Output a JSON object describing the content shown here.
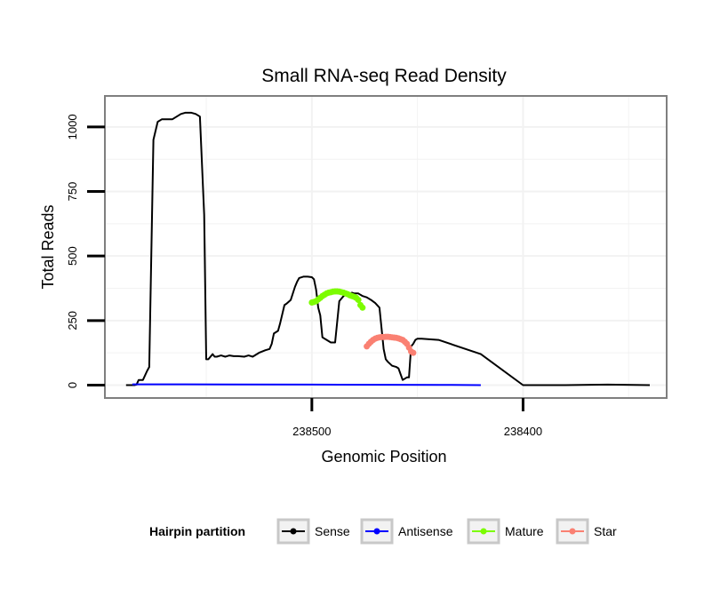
{
  "chart_data": {
    "type": "line",
    "title": "Small RNA-seq Read Density",
    "xlabel": "Genomic Position",
    "ylabel": "Total Reads",
    "x_reversed": true,
    "xlim": [
      238598,
      238332
    ],
    "ylim": [
      -50,
      1120
    ],
    "x_ticks": [
      238500,
      238400
    ],
    "x_tick_labels": [
      "238500",
      "238400"
    ],
    "y_ticks": [
      0,
      250,
      500,
      750,
      1000
    ],
    "y_tick_labels": [
      "0",
      "250",
      "500",
      "750",
      "1000"
    ],
    "grid": true,
    "legend": {
      "title": "Hairpin partition",
      "position": "bottom",
      "entries": [
        {
          "name": "Sense",
          "color": "#000000"
        },
        {
          "name": "Antisense",
          "color": "#0000ff"
        },
        {
          "name": "Mature",
          "color": "#7cfc00"
        },
        {
          "name": "Star",
          "color": "#fa8072"
        }
      ]
    },
    "series": [
      {
        "name": "Sense",
        "color": "#000000",
        "x": [
          238588,
          238584,
          238583,
          238582,
          238580,
          238578,
          238577,
          238575,
          238573,
          238571,
          238566,
          238562,
          238560,
          238557,
          238555,
          238553,
          238551,
          238550,
          238549,
          238548,
          238547,
          238546,
          238545,
          238543,
          238541,
          238539,
          238537,
          238535,
          238532,
          238530,
          238528,
          238525,
          238522,
          238520,
          238519,
          238518,
          238516,
          238515,
          238513,
          238512,
          238510,
          238508,
          238507,
          238506,
          238504,
          238502,
          238500,
          238499,
          238498,
          238497,
          238496,
          238495,
          238493,
          238491,
          238489,
          238487,
          238486,
          238485,
          238483,
          238481,
          238480,
          238478,
          238477,
          238476,
          238474,
          238472,
          238470,
          238468,
          238466,
          238465,
          238464,
          238462,
          238460,
          238459,
          238457,
          238455,
          238454,
          238453,
          238452,
          238451,
          238450,
          238448,
          238440,
          238420,
          238400,
          238380,
          238360,
          238340
        ],
        "y": [
          0,
          0,
          2,
          20,
          20,
          55,
          70,
          950,
          1020,
          1030,
          1030,
          1050,
          1055,
          1055,
          1050,
          1040,
          660,
          100,
          100,
          110,
          120,
          110,
          110,
          115,
          110,
          115,
          112,
          112,
          110,
          115,
          110,
          125,
          135,
          140,
          160,
          200,
          210,
          240,
          310,
          315,
          330,
          380,
          400,
          415,
          420,
          420,
          418,
          410,
          370,
          300,
          270,
          185,
          175,
          165,
          165,
          325,
          335,
          345,
          352,
          358,
          355,
          355,
          350,
          345,
          340,
          330,
          318,
          300,
          140,
          100,
          90,
          75,
          70,
          65,
          20,
          30,
          30,
          150,
          160,
          175,
          180,
          180,
          175,
          120,
          0,
          0,
          2,
          0
        ]
      },
      {
        "name": "Antisense",
        "color": "#0000ff",
        "x": [
          238585,
          238560,
          238500,
          238440,
          238420
        ],
        "y": [
          3,
          3,
          2,
          1,
          0
        ]
      },
      {
        "name": "Mature",
        "color": "#7cfc00",
        "x": [
          238500,
          238499,
          238498,
          238497,
          238496,
          238495,
          238494,
          238493,
          238492,
          238491,
          238490,
          238489,
          238488,
          238487,
          238486,
          238485,
          238484,
          238483,
          238482,
          238481,
          238480,
          238479,
          238478,
          238477,
          238476
        ],
        "y": [
          320,
          322,
          325,
          332,
          338,
          345,
          350,
          355,
          358,
          360,
          362,
          363,
          363,
          362,
          360,
          358,
          355,
          352,
          348,
          345,
          342,
          338,
          330,
          310,
          300
        ]
      },
      {
        "name": "Star",
        "color": "#fa8072",
        "x": [
          238474,
          238473,
          238472,
          238471,
          238470,
          238469,
          238468,
          238467,
          238466,
          238465,
          238464,
          238463,
          238462,
          238461,
          238460,
          238459,
          238458,
          238457,
          238456,
          238455,
          238454,
          238453,
          238452
        ],
        "y": [
          150,
          160,
          168,
          175,
          180,
          183,
          185,
          186,
          186,
          187,
          187,
          186,
          185,
          184,
          183,
          181,
          178,
          175,
          168,
          160,
          145,
          130,
          125
        ]
      }
    ]
  }
}
